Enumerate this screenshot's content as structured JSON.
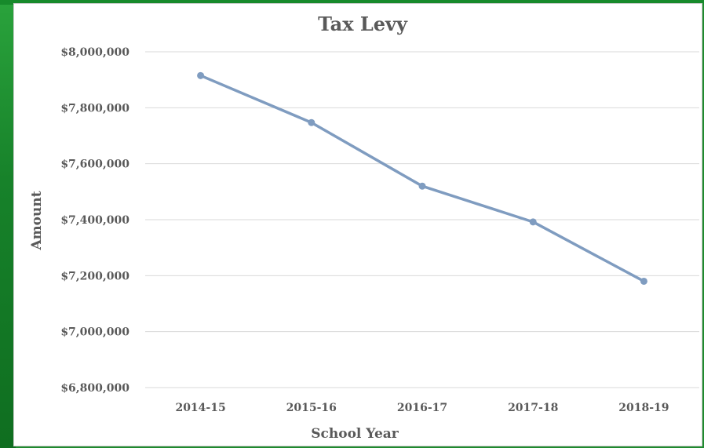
{
  "colors": {
    "background": "#1f8a2f",
    "plot_area": "#ffffff",
    "line": "#7f9cc0",
    "grid": "#d9d9d9",
    "text": "#595959"
  },
  "chart_data": {
    "type": "line",
    "title": "Tax Levy",
    "xlabel": "School Year",
    "ylabel": "Amount",
    "categories": [
      "2014-15",
      "2015-16",
      "2016-17",
      "2017-18",
      "2018-19"
    ],
    "series": [
      {
        "values": [
          7915000,
          7747000,
          7520000,
          7392000,
          7180000
        ]
      }
    ],
    "ylim": [
      6800000,
      8000000
    ],
    "yticks": [
      6800000,
      7000000,
      7200000,
      7400000,
      7600000,
      7800000,
      8000000
    ],
    "ytick_labels": [
      "$6,800,000",
      "$7,000,000",
      "$7,200,000",
      "$7,400,000",
      "$7,600,000",
      "$7,800,000",
      "$8,000,000"
    ],
    "grid": true,
    "legend": "none"
  }
}
